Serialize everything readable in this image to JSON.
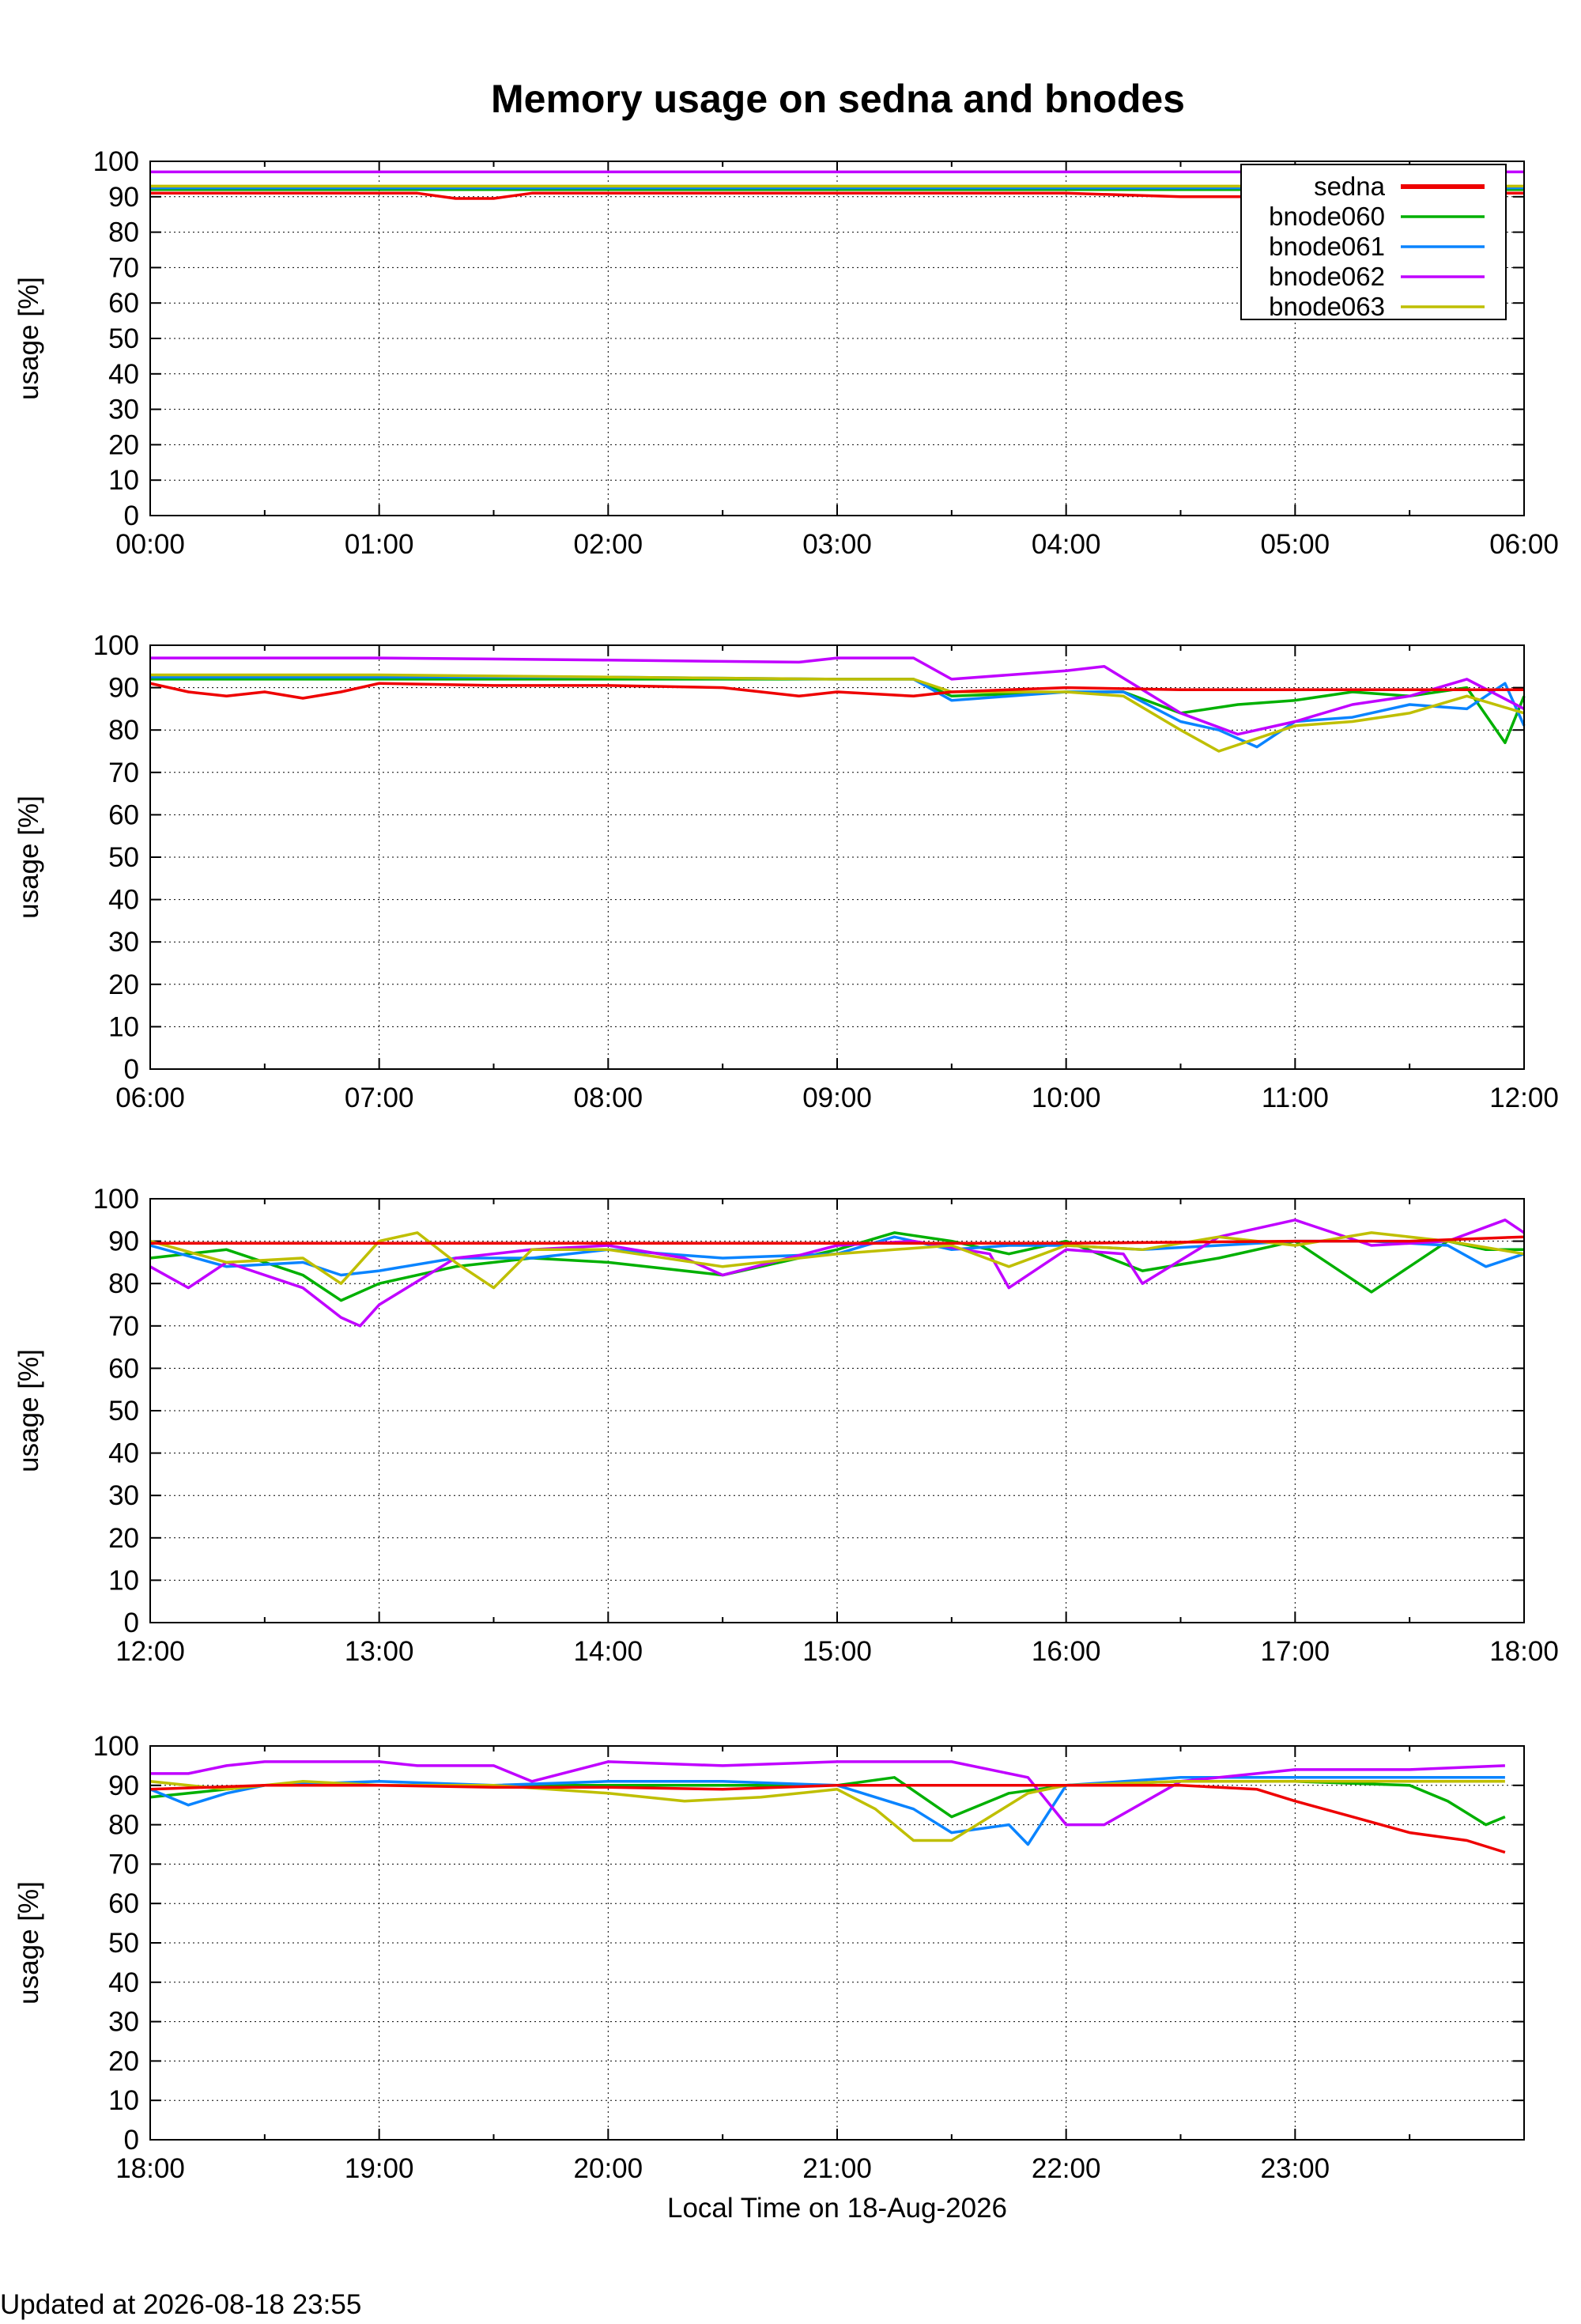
{
  "title": "Memory usage on sedna and bnodes",
  "footer": "Updated at 2026-08-18 23:55",
  "colors": {
    "sedna": "#ee0000",
    "bnode060": "#00b000",
    "bnode061": "#0a84ff",
    "bnode062": "#c000ff",
    "bnode063": "#bfbf00"
  },
  "chart_data": [
    {
      "type": "line",
      "title": "Memory usage on sedna and bnodes",
      "xlabel": "",
      "ylabel": "usage [%]",
      "xlim": [
        "00:00",
        "06:00"
      ],
      "ylim": [
        0,
        100
      ],
      "grid": true,
      "legend": "top-right",
      "x_ticks": [
        "00:00",
        "01:00",
        "02:00",
        "03:00",
        "04:00",
        "05:00",
        "06:00"
      ],
      "y_ticks": [
        "0",
        "10",
        "20",
        "30",
        "40",
        "50",
        "60",
        "70",
        "80",
        "90",
        "100"
      ],
      "legend_entries": [
        "sedna",
        "bnode060",
        "bnode061",
        "bnode062",
        "bnode063"
      ],
      "series": [
        {
          "name": "sedna",
          "x": [
            "00:00",
            "00:30",
            "01:00",
            "01:10",
            "01:20",
            "01:30",
            "01:40",
            "02:00",
            "02:30",
            "03:00",
            "03:30",
            "04:00",
            "04:30",
            "05:00",
            "05:10",
            "05:30",
            "06:00"
          ],
          "y": [
            91,
            91,
            91,
            91,
            89.5,
            89.5,
            91,
            91,
            91,
            91,
            91,
            91,
            90,
            90,
            89,
            91,
            91
          ]
        },
        {
          "name": "bnode060",
          "x": [
            "00:00",
            "01:00",
            "02:00",
            "03:00",
            "04:00",
            "05:00",
            "06:00"
          ],
          "y": [
            92,
            92,
            92,
            92,
            92,
            92,
            92
          ]
        },
        {
          "name": "bnode061",
          "x": [
            "00:00",
            "01:00",
            "02:00",
            "03:00",
            "04:00",
            "05:00",
            "06:00"
          ],
          "y": [
            92.5,
            92.5,
            92.5,
            92.5,
            92.5,
            92.5,
            92.5
          ]
        },
        {
          "name": "bnode062",
          "x": [
            "00:00",
            "01:00",
            "02:00",
            "03:00",
            "04:00",
            "05:00",
            "06:00"
          ],
          "y": [
            97,
            97,
            97,
            97,
            97,
            97,
            97
          ]
        },
        {
          "name": "bnode063",
          "x": [
            "00:00",
            "01:00",
            "02:00",
            "03:00",
            "04:00",
            "05:00",
            "06:00"
          ],
          "y": [
            93,
            93,
            93,
            93,
            93,
            93,
            93
          ]
        }
      ]
    },
    {
      "type": "line",
      "xlabel": "",
      "ylabel": "usage [%]",
      "xlim": [
        "06:00",
        "12:00"
      ],
      "ylim": [
        0,
        100
      ],
      "grid": true,
      "x_ticks": [
        "06:00",
        "07:00",
        "08:00",
        "09:00",
        "10:00",
        "11:00",
        "12:00"
      ],
      "y_ticks": [
        "0",
        "10",
        "20",
        "30",
        "40",
        "50",
        "60",
        "70",
        "80",
        "90",
        "100"
      ],
      "series": [
        {
          "name": "sedna",
          "x": [
            "06:00",
            "06:10",
            "06:20",
            "06:30",
            "06:40",
            "06:50",
            "07:00",
            "07:30",
            "08:00",
            "08:30",
            "08:50",
            "09:00",
            "09:20",
            "09:30",
            "10:00",
            "10:30",
            "11:00",
            "11:30",
            "12:00"
          ],
          "y": [
            91,
            89,
            88,
            89,
            87.5,
            89,
            91,
            90.5,
            90.5,
            90,
            88,
            89,
            88,
            89,
            90,
            89.5,
            89.5,
            89.5,
            89.5
          ]
        },
        {
          "name": "bnode060",
          "x": [
            "06:00",
            "07:00",
            "08:00",
            "09:00",
            "09:20",
            "09:30",
            "10:00",
            "10:15",
            "10:30",
            "10:45",
            "11:00",
            "11:15",
            "11:30",
            "11:45",
            "11:55",
            "12:00"
          ],
          "y": [
            92,
            92,
            92,
            92,
            92,
            88,
            89,
            89,
            84,
            86,
            87,
            89,
            88,
            90,
            77,
            88
          ]
        },
        {
          "name": "bnode061",
          "x": [
            "06:00",
            "07:00",
            "08:00",
            "09:00",
            "09:20",
            "09:30",
            "10:00",
            "10:15",
            "10:30",
            "10:40",
            "10:50",
            "11:00",
            "11:15",
            "11:30",
            "11:45",
            "11:55",
            "12:00"
          ],
          "y": [
            92.5,
            92.5,
            92.5,
            92,
            92,
            87,
            89,
            89,
            82,
            80,
            76,
            82,
            83,
            86,
            85,
            91,
            81
          ]
        },
        {
          "name": "bnode062",
          "x": [
            "06:00",
            "07:00",
            "08:00",
            "08:50",
            "09:00",
            "09:20",
            "09:30",
            "10:00",
            "10:10",
            "10:30",
            "10:45",
            "11:00",
            "11:15",
            "11:30",
            "11:45",
            "12:00"
          ],
          "y": [
            97,
            97,
            96.5,
            96,
            97,
            97,
            92,
            94,
            95,
            84,
            79,
            82,
            86,
            88,
            92,
            85
          ]
        },
        {
          "name": "bnode063",
          "x": [
            "06:00",
            "07:00",
            "08:00",
            "09:00",
            "09:20",
            "09:30",
            "10:00",
            "10:15",
            "10:30",
            "10:40",
            "11:00",
            "11:15",
            "11:30",
            "11:45",
            "12:00"
          ],
          "y": [
            93,
            93,
            92.5,
            92,
            92,
            89,
            89,
            88,
            80,
            75,
            81,
            82,
            84,
            88,
            84
          ]
        }
      ]
    },
    {
      "type": "line",
      "xlabel": "",
      "ylabel": "usage [%]",
      "xlim": [
        "12:00",
        "18:00"
      ],
      "ylim": [
        0,
        100
      ],
      "grid": true,
      "x_ticks": [
        "12:00",
        "13:00",
        "14:00",
        "15:00",
        "16:00",
        "17:00",
        "18:00"
      ],
      "y_ticks": [
        "0",
        "10",
        "20",
        "30",
        "40",
        "50",
        "60",
        "70",
        "80",
        "90",
        "100"
      ],
      "series": [
        {
          "name": "sedna",
          "x": [
            "12:00",
            "13:00",
            "14:00",
            "15:00",
            "16:00",
            "17:00",
            "17:30",
            "18:00"
          ],
          "y": [
            89.5,
            89.5,
            89.5,
            89.5,
            89.5,
            90,
            90,
            91
          ]
        },
        {
          "name": "bnode060",
          "x": [
            "12:00",
            "12:20",
            "12:40",
            "12:50",
            "13:00",
            "13:20",
            "13:40",
            "14:00",
            "14:30",
            "15:00",
            "15:15",
            "15:30",
            "15:45",
            "16:00",
            "16:20",
            "16:40",
            "17:00",
            "17:20",
            "17:40",
            "17:50",
            "18:00"
          ],
          "y": [
            86,
            88,
            82,
            76,
            80,
            84,
            86,
            85,
            82,
            88,
            92,
            90,
            87,
            90,
            83,
            86,
            90,
            78,
            90,
            88,
            88
          ]
        },
        {
          "name": "bnode061",
          "x": [
            "12:00",
            "12:20",
            "12:40",
            "12:50",
            "13:00",
            "13:20",
            "13:40",
            "14:00",
            "14:30",
            "15:00",
            "15:15",
            "15:30",
            "15:45",
            "16:00",
            "16:20",
            "16:40",
            "17:00",
            "17:20",
            "17:40",
            "17:50",
            "18:00"
          ],
          "y": [
            89,
            84,
            85,
            82,
            83,
            86,
            86,
            88,
            86,
            87,
            91,
            88,
            89,
            89,
            88,
            89,
            90,
            90,
            89,
            84,
            87
          ]
        },
        {
          "name": "bnode062",
          "x": [
            "12:00",
            "12:10",
            "12:20",
            "12:40",
            "12:50",
            "12:55",
            "13:00",
            "13:20",
            "13:40",
            "14:00",
            "14:20",
            "14:30",
            "15:00",
            "15:20",
            "15:40",
            "15:45",
            "16:00",
            "16:15",
            "16:20",
            "16:40",
            "17:00",
            "17:20",
            "17:40",
            "17:55",
            "18:00"
          ],
          "y": [
            84,
            79,
            85,
            79,
            72,
            70,
            75,
            86,
            88,
            89,
            86,
            82,
            89,
            90,
            87,
            79,
            88,
            87,
            80,
            91,
            95,
            89,
            90,
            95,
            92
          ]
        },
        {
          "name": "bnode063",
          "x": [
            "12:00",
            "12:20",
            "12:40",
            "12:50",
            "13:00",
            "13:10",
            "13:20",
            "13:30",
            "13:40",
            "14:00",
            "14:30",
            "15:00",
            "15:15",
            "15:30",
            "15:45",
            "16:00",
            "16:20",
            "16:40",
            "17:00",
            "17:20",
            "17:40",
            "18:00"
          ],
          "y": [
            90,
            85,
            86,
            80,
            90,
            92,
            85,
            79,
            88,
            88,
            84,
            87,
            88,
            89,
            84,
            89,
            88,
            91,
            89,
            92,
            90,
            87
          ]
        }
      ]
    },
    {
      "type": "line",
      "xlabel": "Local Time on 18-Aug-2026",
      "ylabel": "usage [%]",
      "xlim": [
        "18:00",
        "24:00"
      ],
      "ylim": [
        0,
        100
      ],
      "grid": true,
      "x_ticks": [
        "18:00",
        "19:00",
        "20:00",
        "21:00",
        "22:00",
        "23:00"
      ],
      "y_ticks": [
        "0",
        "10",
        "20",
        "30",
        "40",
        "50",
        "60",
        "70",
        "80",
        "90",
        "100"
      ],
      "series": [
        {
          "name": "sedna",
          "x": [
            "18:00",
            "18:30",
            "19:00",
            "19:30",
            "20:00",
            "20:30",
            "21:00",
            "21:30",
            "22:00",
            "22:30",
            "22:50",
            "23:00",
            "23:15",
            "23:30",
            "23:45",
            "23:55"
          ],
          "y": [
            89,
            90,
            90,
            89.5,
            89.5,
            89,
            90,
            90,
            90,
            90,
            89,
            86,
            82,
            78,
            76,
            73
          ]
        },
        {
          "name": "bnode060",
          "x": [
            "18:00",
            "18:10",
            "18:30",
            "19:00",
            "19:30",
            "20:00",
            "20:30",
            "21:00",
            "21:15",
            "21:30",
            "21:45",
            "22:00",
            "22:30",
            "23:00",
            "23:30",
            "23:40",
            "23:50",
            "23:55"
          ],
          "y": [
            87,
            88,
            90,
            90,
            90,
            90,
            90,
            90,
            92,
            82,
            88,
            90,
            91,
            91,
            90,
            86,
            80,
            82
          ]
        },
        {
          "name": "bnode061",
          "x": [
            "18:00",
            "18:10",
            "18:20",
            "18:30",
            "19:00",
            "19:30",
            "20:00",
            "20:30",
            "21:00",
            "21:20",
            "21:30",
            "21:45",
            "21:50",
            "22:00",
            "22:30",
            "23:00",
            "23:30",
            "23:55"
          ],
          "y": [
            89,
            85,
            88,
            90,
            91,
            90,
            91,
            91,
            90,
            84,
            78,
            80,
            75,
            90,
            92,
            92,
            92,
            92
          ]
        },
        {
          "name": "bnode062",
          "x": [
            "18:00",
            "18:10",
            "18:20",
            "18:30",
            "19:00",
            "19:10",
            "19:30",
            "19:40",
            "20:00",
            "20:30",
            "21:00",
            "21:30",
            "21:50",
            "22:00",
            "22:10",
            "22:30",
            "23:00",
            "23:20",
            "23:30",
            "23:55"
          ],
          "y": [
            93,
            93,
            95,
            96,
            96,
            95,
            95,
            91,
            96,
            95,
            96,
            96,
            92,
            80,
            80,
            91,
            94,
            94,
            94,
            95
          ]
        },
        {
          "name": "bnode063",
          "x": [
            "18:00",
            "18:20",
            "18:40",
            "19:00",
            "19:30",
            "20:00",
            "20:20",
            "20:40",
            "21:00",
            "21:10",
            "21:20",
            "21:30",
            "21:40",
            "21:50",
            "22:00",
            "22:30",
            "23:00",
            "23:30",
            "23:55"
          ],
          "y": [
            91,
            89,
            91,
            90,
            90,
            88,
            86,
            87,
            89,
            84,
            76,
            76,
            82,
            88,
            90,
            91,
            91,
            91,
            91
          ]
        }
      ]
    }
  ]
}
